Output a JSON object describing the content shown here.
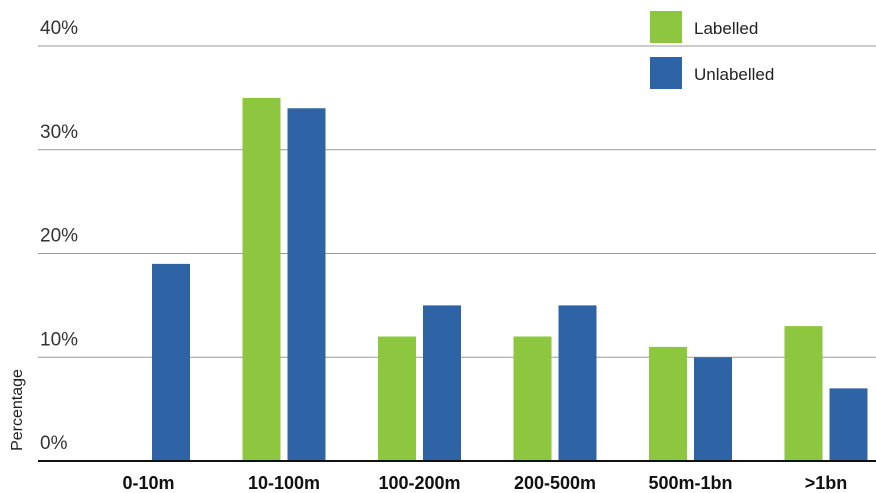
{
  "chart_data": {
    "type": "bar",
    "categories": [
      "0-10m",
      "10-100m",
      "100-200m",
      "200-500m",
      "500m-1bn",
      ">1bn"
    ],
    "series": [
      {
        "name": "Labelled",
        "color": "#8dc63f",
        "values": [
          0,
          35,
          12,
          12,
          11,
          13
        ]
      },
      {
        "name": "Unlabelled",
        "color": "#2e64a6",
        "values": [
          19,
          34,
          15,
          15,
          10,
          7
        ]
      }
    ],
    "yticks": [
      {
        "value": 0,
        "label": "0%"
      },
      {
        "value": 10,
        "label": "10%"
      },
      {
        "value": 20,
        "label": "20%"
      },
      {
        "value": 30,
        "label": "30%"
      },
      {
        "value": 40,
        "label": "40%"
      }
    ],
    "title": "",
    "xlabel": "",
    "ylabel": "Percentage",
    "ylim": [
      0,
      40
    ],
    "grid": true,
    "legend_position": "top-right"
  }
}
